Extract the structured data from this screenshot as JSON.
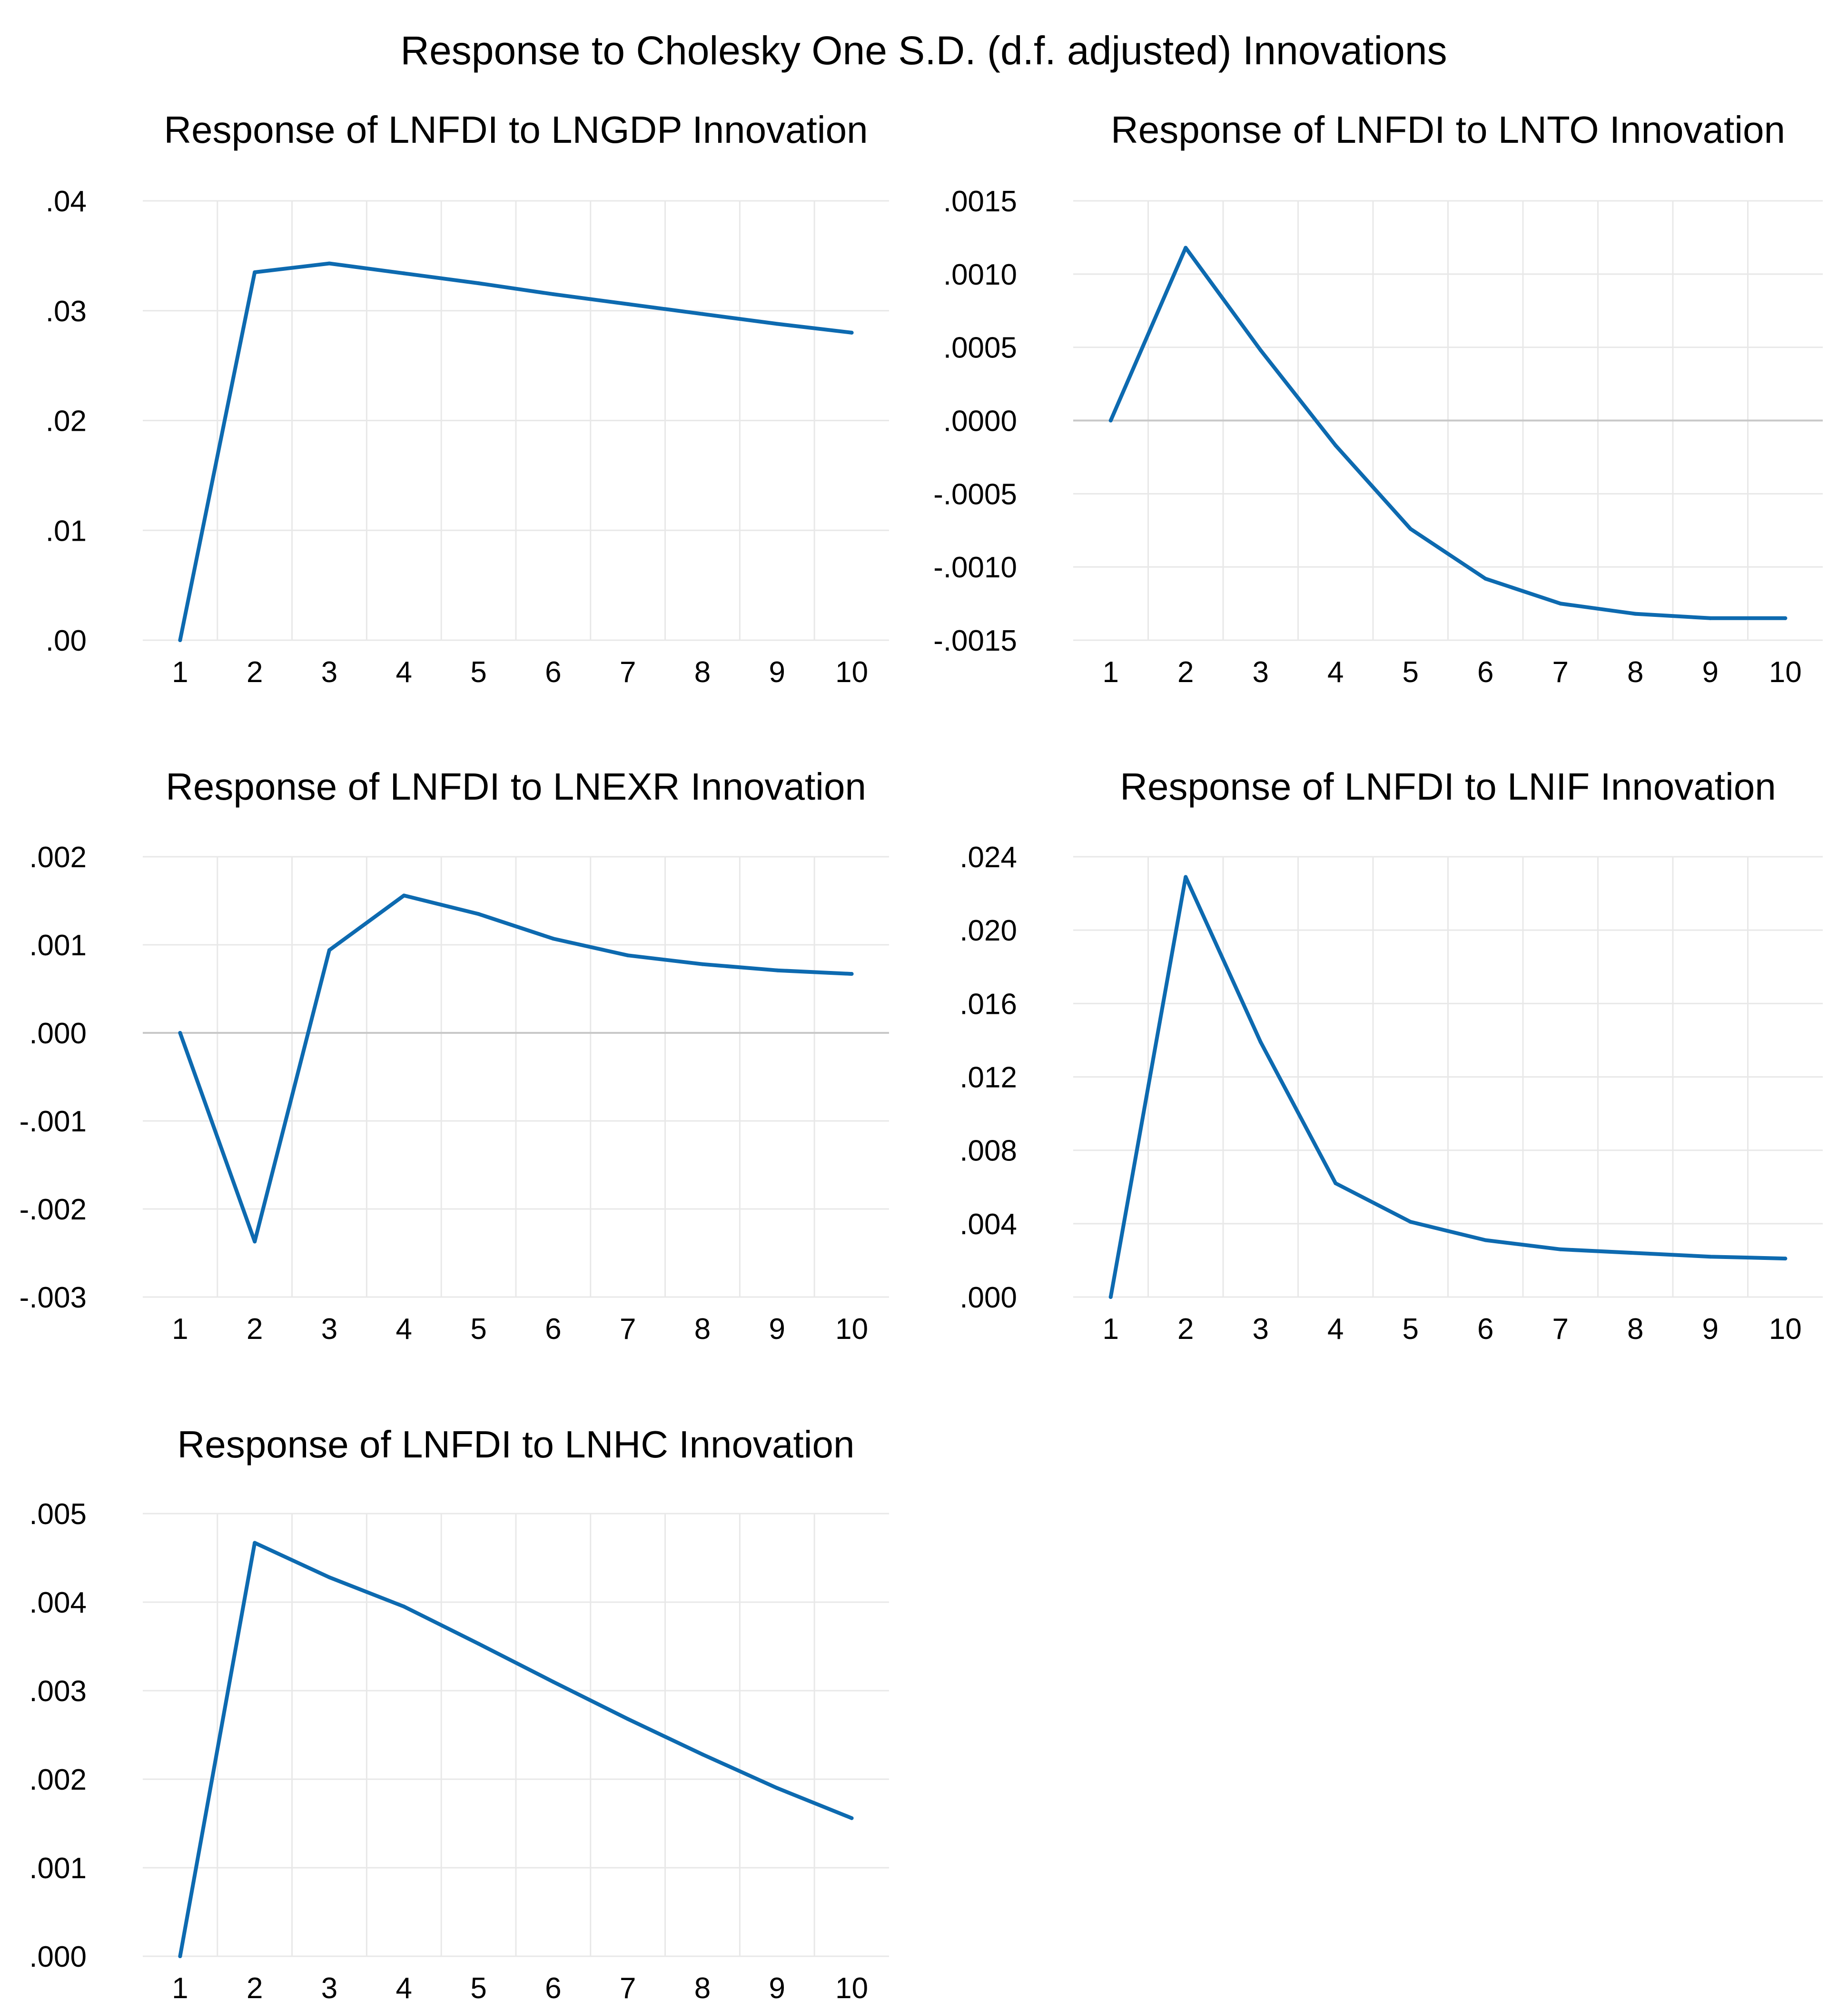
{
  "figure_title": "Response to Cholesky One S.D. (d.f. adjusted) Innovations",
  "line_color": "#0D6AB0",
  "grid_color": "#E8E8E8",
  "zero_line_color": "#C8C8C8",
  "chart_data": [
    {
      "type": "line",
      "title": "Response of LNFDI to LNGDP Innovation",
      "xlabel": "",
      "ylabel": "",
      "x": [
        1,
        2,
        3,
        4,
        5,
        6,
        7,
        8,
        9,
        10
      ],
      "y": [
        0.0,
        0.0335,
        0.0343,
        0.0334,
        0.0325,
        0.0315,
        0.0306,
        0.0297,
        0.0288,
        0.028
      ],
      "ylim": [
        0.0,
        0.04
      ],
      "yticks": [
        0.0,
        0.01,
        0.02,
        0.03,
        0.04
      ],
      "ytick_labels": [
        ".00",
        ".01",
        ".02",
        ".03",
        ".04"
      ],
      "xticks": [
        1,
        2,
        3,
        4,
        5,
        6,
        7,
        8,
        9,
        10
      ],
      "xtick_labels": [
        "1",
        "2",
        "3",
        "4",
        "5",
        "6",
        "7",
        "8",
        "9",
        "10"
      ],
      "zero_line": false
    },
    {
      "type": "line",
      "title": "Response of LNFDI to LNTO Innovation",
      "xlabel": "",
      "ylabel": "",
      "x": [
        1,
        2,
        3,
        4,
        5,
        6,
        7,
        8,
        9,
        10
      ],
      "y": [
        0.0,
        0.00118,
        0.00048,
        -0.00017,
        -0.00074,
        -0.00108,
        -0.00125,
        -0.00132,
        -0.00135,
        -0.00135
      ],
      "ylim": [
        -0.0015,
        0.0015
      ],
      "yticks": [
        -0.0015,
        -0.001,
        -0.0005,
        0.0,
        0.0005,
        0.001,
        0.0015
      ],
      "ytick_labels": [
        "-.0015",
        "-.0010",
        "-.0005",
        ".0000",
        ".0005",
        ".0010",
        ".0015"
      ],
      "xticks": [
        1,
        2,
        3,
        4,
        5,
        6,
        7,
        8,
        9,
        10
      ],
      "xtick_labels": [
        "1",
        "2",
        "3",
        "4",
        "5",
        "6",
        "7",
        "8",
        "9",
        "10"
      ],
      "zero_line": true
    },
    {
      "type": "line",
      "title": "Response of LNFDI to LNEXR Innovation",
      "xlabel": "",
      "ylabel": "",
      "x": [
        1,
        2,
        3,
        4,
        5,
        6,
        7,
        8,
        9,
        10
      ],
      "y": [
        0.0,
        -0.00237,
        0.00094,
        0.00156,
        0.00135,
        0.00107,
        0.00088,
        0.00078,
        0.00071,
        0.00067
      ],
      "ylim": [
        -0.003,
        0.002
      ],
      "yticks": [
        -0.003,
        -0.002,
        -0.001,
        0.0,
        0.001,
        0.002
      ],
      "ytick_labels": [
        "-.003",
        "-.002",
        "-.001",
        ".000",
        ".001",
        ".002"
      ],
      "xticks": [
        1,
        2,
        3,
        4,
        5,
        6,
        7,
        8,
        9,
        10
      ],
      "xtick_labels": [
        "1",
        "2",
        "3",
        "4",
        "5",
        "6",
        "7",
        "8",
        "9",
        "10"
      ],
      "zero_line": true
    },
    {
      "type": "line",
      "title": "Response of LNFDI to LNIF Innovation",
      "xlabel": "",
      "ylabel": "",
      "x": [
        1,
        2,
        3,
        4,
        5,
        6,
        7,
        8,
        9,
        10
      ],
      "y": [
        0.0,
        0.0229,
        0.0139,
        0.0062,
        0.0041,
        0.0031,
        0.0026,
        0.0024,
        0.0022,
        0.0021
      ],
      "ylim": [
        0.0,
        0.024
      ],
      "yticks": [
        0.0,
        0.004,
        0.008,
        0.012,
        0.016,
        0.02,
        0.024
      ],
      "ytick_labels": [
        ".000",
        ".004",
        ".008",
        ".012",
        ".016",
        ".020",
        ".024"
      ],
      "xticks": [
        1,
        2,
        3,
        4,
        5,
        6,
        7,
        8,
        9,
        10
      ],
      "xtick_labels": [
        "1",
        "2",
        "3",
        "4",
        "5",
        "6",
        "7",
        "8",
        "9",
        "10"
      ],
      "zero_line": false
    },
    {
      "type": "line",
      "title": "Response of LNFDI to LNHC Innovation",
      "xlabel": "",
      "ylabel": "",
      "x": [
        1,
        2,
        3,
        4,
        5,
        6,
        7,
        8,
        9,
        10
      ],
      "y": [
        0.0,
        0.00467,
        0.00428,
        0.00395,
        0.00353,
        0.0031,
        0.00268,
        0.00228,
        0.0019,
        0.00156
      ],
      "ylim": [
        0.0,
        0.005
      ],
      "yticks": [
        0.0,
        0.001,
        0.002,
        0.003,
        0.004,
        0.005
      ],
      "ytick_labels": [
        ".000",
        ".001",
        ".002",
        ".003",
        ".004",
        ".005"
      ],
      "xticks": [
        1,
        2,
        3,
        4,
        5,
        6,
        7,
        8,
        9,
        10
      ],
      "xtick_labels": [
        "1",
        "2",
        "3",
        "4",
        "5",
        "6",
        "7",
        "8",
        "9",
        "10"
      ],
      "zero_line": false
    }
  ]
}
